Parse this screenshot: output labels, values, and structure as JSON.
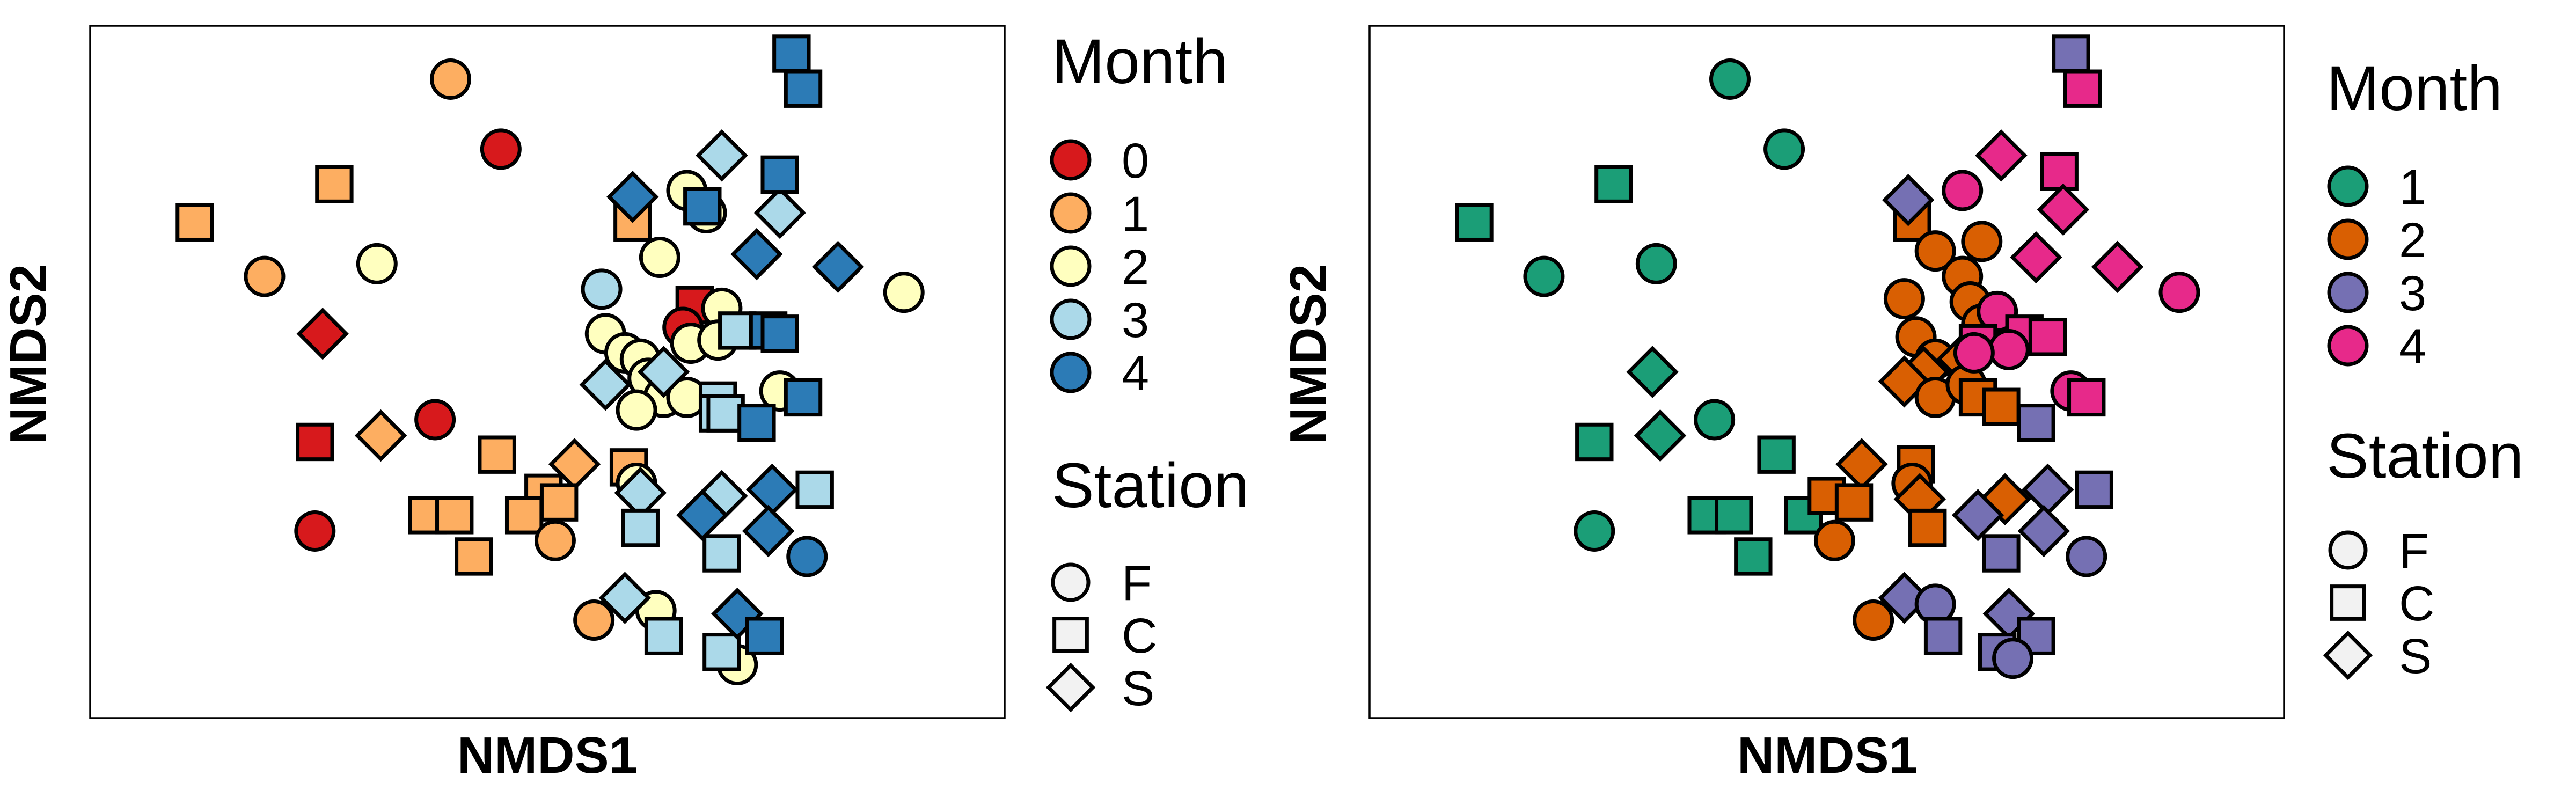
{
  "chart_data": [
    {
      "type": "scatter",
      "xlabel": "NMDS1",
      "ylabel": "NMDS2",
      "xlim": [
        0,
        100
      ],
      "ylim": [
        0,
        100
      ],
      "grid": false,
      "legend_placement": "right",
      "color_legend": {
        "title": "Month",
        "entries": [
          {
            "label": "0",
            "color": "#D7191C"
          },
          {
            "label": "1",
            "color": "#FDAE61"
          },
          {
            "label": "2",
            "color": "#FFFFBF"
          },
          {
            "label": "3",
            "color": "#ABD9E9"
          },
          {
            "label": "4",
            "color": "#2C7BB6"
          }
        ]
      },
      "shape_legend": {
        "title": "Station",
        "entries": [
          {
            "label": "F",
            "shape": "circle"
          },
          {
            "label": "C",
            "shape": "square"
          },
          {
            "label": "S",
            "shape": "diamond"
          }
        ]
      },
      "points": [
        {
          "x": 44.0,
          "y": 85.0,
          "g": 0,
          "s": "F"
        },
        {
          "x": 21.0,
          "y": 56.0,
          "g": 0,
          "s": "S"
        },
        {
          "x": 35.5,
          "y": 42.5,
          "g": 0,
          "s": "F"
        },
        {
          "x": 20.0,
          "y": 39.0,
          "g": 0,
          "s": "C"
        },
        {
          "x": 20.0,
          "y": 25.0,
          "g": 0,
          "s": "F"
        },
        {
          "x": 69.0,
          "y": 60.5,
          "g": 0,
          "s": "C"
        },
        {
          "x": 67.5,
          "y": 57.0,
          "g": 0,
          "s": "F"
        },
        {
          "x": 37.5,
          "y": 96.0,
          "g": 1,
          "s": "F"
        },
        {
          "x": 22.5,
          "y": 79.5,
          "g": 1,
          "s": "C"
        },
        {
          "x": 4.5,
          "y": 73.5,
          "g": 1,
          "s": "C"
        },
        {
          "x": 13.5,
          "y": 65.0,
          "g": 1,
          "s": "F"
        },
        {
          "x": 28.5,
          "y": 40.0,
          "g": 1,
          "s": "S"
        },
        {
          "x": 43.5,
          "y": 37.0,
          "g": 1,
          "s": "C"
        },
        {
          "x": 53.5,
          "y": 35.5,
          "g": 1,
          "s": "S"
        },
        {
          "x": 49.5,
          "y": 31.0,
          "g": 1,
          "s": "C"
        },
        {
          "x": 51.5,
          "y": 29.5,
          "g": 1,
          "s": "C"
        },
        {
          "x": 34.5,
          "y": 27.5,
          "g": 1,
          "s": "C"
        },
        {
          "x": 38.0,
          "y": 27.5,
          "g": 1,
          "s": "C"
        },
        {
          "x": 47.0,
          "y": 27.5,
          "g": 1,
          "s": "C"
        },
        {
          "x": 51.0,
          "y": 23.5,
          "g": 1,
          "s": "F"
        },
        {
          "x": 40.5,
          "y": 21.0,
          "g": 1,
          "s": "C"
        },
        {
          "x": 60.5,
          "y": 35.0,
          "g": 1,
          "s": "C"
        },
        {
          "x": 61.0,
          "y": 73.5,
          "g": 1,
          "s": "C"
        },
        {
          "x": 56.0,
          "y": 11.0,
          "g": 1,
          "s": "F"
        },
        {
          "x": 28.0,
          "y": 67.0,
          "g": 2,
          "s": "F"
        },
        {
          "x": 68.0,
          "y": 78.5,
          "g": 2,
          "s": "F"
        },
        {
          "x": 70.5,
          "y": 75.0,
          "g": 2,
          "s": "F"
        },
        {
          "x": 64.5,
          "y": 68.0,
          "g": 2,
          "s": "F"
        },
        {
          "x": 57.5,
          "y": 56.0,
          "g": 2,
          "s": "F"
        },
        {
          "x": 60.0,
          "y": 53.0,
          "g": 2,
          "s": "F"
        },
        {
          "x": 62.0,
          "y": 52.0,
          "g": 2,
          "s": "F"
        },
        {
          "x": 68.5,
          "y": 54.5,
          "g": 2,
          "s": "F"
        },
        {
          "x": 72.5,
          "y": 60.0,
          "g": 2,
          "s": "F"
        },
        {
          "x": 72.0,
          "y": 55.0,
          "g": 2,
          "s": "F"
        },
        {
          "x": 63.0,
          "y": 49.0,
          "g": 2,
          "s": "F"
        },
        {
          "x": 65.0,
          "y": 46.0,
          "g": 2,
          "s": "F"
        },
        {
          "x": 68.0,
          "y": 46.0,
          "g": 2,
          "s": "F"
        },
        {
          "x": 61.5,
          "y": 44.0,
          "g": 2,
          "s": "F"
        },
        {
          "x": 80.0,
          "y": 47.0,
          "g": 2,
          "s": "F"
        },
        {
          "x": 96.0,
          "y": 62.5,
          "g": 2,
          "s": "F"
        },
        {
          "x": 61.5,
          "y": 32.5,
          "g": 2,
          "s": "F"
        },
        {
          "x": 64.0,
          "y": 12.5,
          "g": 2,
          "s": "F"
        },
        {
          "x": 74.5,
          "y": 4.0,
          "g": 2,
          "s": "F"
        },
        {
          "x": 57.0,
          "y": 63.0,
          "g": 3,
          "s": "F"
        },
        {
          "x": 57.5,
          "y": 48.0,
          "g": 3,
          "s": "S"
        },
        {
          "x": 65.0,
          "y": 50.0,
          "g": 3,
          "s": "S"
        },
        {
          "x": 72.5,
          "y": 84.0,
          "g": 3,
          "s": "S"
        },
        {
          "x": 80.0,
          "y": 75.0,
          "g": 3,
          "s": "S"
        },
        {
          "x": 74.5,
          "y": 56.5,
          "g": 3,
          "s": "C"
        },
        {
          "x": 72.0,
          "y": 45.5,
          "g": 3,
          "s": "C"
        },
        {
          "x": 72.0,
          "y": 43.5,
          "g": 3,
          "s": "C"
        },
        {
          "x": 73.0,
          "y": 43.5,
          "g": 3,
          "s": "C"
        },
        {
          "x": 62.0,
          "y": 31.0,
          "g": 3,
          "s": "S"
        },
        {
          "x": 62.0,
          "y": 25.5,
          "g": 3,
          "s": "C"
        },
        {
          "x": 72.5,
          "y": 30.5,
          "g": 3,
          "s": "S"
        },
        {
          "x": 84.5,
          "y": 31.5,
          "g": 3,
          "s": "C"
        },
        {
          "x": 72.5,
          "y": 21.5,
          "g": 3,
          "s": "C"
        },
        {
          "x": 60.0,
          "y": 14.5,
          "g": 3,
          "s": "S"
        },
        {
          "x": 65.0,
          "y": 8.5,
          "g": 3,
          "s": "C"
        },
        {
          "x": 72.5,
          "y": 6.0,
          "g": 3,
          "s": "C"
        },
        {
          "x": 81.5,
          "y": 100.0,
          "g": 4,
          "s": "C"
        },
        {
          "x": 83.0,
          "y": 94.5,
          "g": 4,
          "s": "C"
        },
        {
          "x": 80.0,
          "y": 81.0,
          "g": 4,
          "s": "C"
        },
        {
          "x": 61.0,
          "y": 77.5,
          "g": 4,
          "s": "S"
        },
        {
          "x": 70.0,
          "y": 76.0,
          "g": 4,
          "s": "C"
        },
        {
          "x": 77.0,
          "y": 68.5,
          "g": 4,
          "s": "S"
        },
        {
          "x": 87.5,
          "y": 66.5,
          "g": 4,
          "s": "S"
        },
        {
          "x": 78.5,
          "y": 56.5,
          "g": 4,
          "s": "C"
        },
        {
          "x": 80.0,
          "y": 56.0,
          "g": 4,
          "s": "C"
        },
        {
          "x": 83.0,
          "y": 46.0,
          "g": 4,
          "s": "C"
        },
        {
          "x": 77.0,
          "y": 42.0,
          "g": 4,
          "s": "C"
        },
        {
          "x": 79.0,
          "y": 31.5,
          "g": 4,
          "s": "S"
        },
        {
          "x": 70.0,
          "y": 27.5,
          "g": 4,
          "s": "S"
        },
        {
          "x": 78.5,
          "y": 25.0,
          "g": 4,
          "s": "S"
        },
        {
          "x": 83.5,
          "y": 21.0,
          "g": 4,
          "s": "F"
        },
        {
          "x": 74.5,
          "y": 12.0,
          "g": 4,
          "s": "S"
        },
        {
          "x": 78.0,
          "y": 8.5,
          "g": 4,
          "s": "C"
        }
      ]
    },
    {
      "type": "scatter",
      "xlabel": "NMDS1",
      "ylabel": "NMDS2",
      "xlim": [
        0,
        100
      ],
      "ylim": [
        0,
        100
      ],
      "grid": false,
      "legend_placement": "right",
      "color_legend": {
        "title": "Month",
        "entries": [
          {
            "label": "1",
            "color": "#1B9E77"
          },
          {
            "label": "2",
            "color": "#D95F02"
          },
          {
            "label": "3",
            "color": "#7570B3"
          },
          {
            "label": "4",
            "color": "#E7298A"
          }
        ]
      },
      "shape_legend": {
        "title": "Station",
        "entries": [
          {
            "label": "F",
            "shape": "circle"
          },
          {
            "label": "C",
            "shape": "square"
          },
          {
            "label": "S",
            "shape": "diamond"
          }
        ]
      },
      "points": [
        {
          "x": 37.5,
          "y": 96.0,
          "g": 1,
          "s": "F"
        },
        {
          "x": 44.5,
          "y": 85.0,
          "g": 1,
          "s": "F"
        },
        {
          "x": 22.5,
          "y": 79.5,
          "g": 1,
          "s": "C"
        },
        {
          "x": 4.5,
          "y": 73.5,
          "g": 1,
          "s": "C"
        },
        {
          "x": 13.5,
          "y": 65.0,
          "g": 1,
          "s": "F"
        },
        {
          "x": 28.0,
          "y": 67.0,
          "g": 1,
          "s": "F"
        },
        {
          "x": 27.5,
          "y": 50.0,
          "g": 1,
          "s": "S"
        },
        {
          "x": 28.5,
          "y": 40.0,
          "g": 1,
          "s": "S"
        },
        {
          "x": 35.5,
          "y": 42.5,
          "g": 1,
          "s": "F"
        },
        {
          "x": 20.0,
          "y": 39.0,
          "g": 1,
          "s": "C"
        },
        {
          "x": 43.5,
          "y": 37.0,
          "g": 1,
          "s": "C"
        },
        {
          "x": 34.5,
          "y": 27.5,
          "g": 1,
          "s": "C"
        },
        {
          "x": 38.0,
          "y": 27.5,
          "g": 1,
          "s": "C"
        },
        {
          "x": 47.0,
          "y": 27.5,
          "g": 1,
          "s": "C"
        },
        {
          "x": 20.0,
          "y": 25.0,
          "g": 1,
          "s": "F"
        },
        {
          "x": 40.5,
          "y": 21.0,
          "g": 1,
          "s": "C"
        },
        {
          "x": 61.0,
          "y": 73.5,
          "g": 2,
          "s": "C"
        },
        {
          "x": 64.0,
          "y": 69.0,
          "g": 2,
          "s": "F"
        },
        {
          "x": 70.0,
          "y": 70.5,
          "g": 2,
          "s": "F"
        },
        {
          "x": 67.5,
          "y": 65.0,
          "g": 2,
          "s": "F"
        },
        {
          "x": 60.0,
          "y": 61.5,
          "g": 2,
          "s": "F"
        },
        {
          "x": 68.5,
          "y": 61.0,
          "g": 2,
          "s": "F"
        },
        {
          "x": 70.0,
          "y": 57.5,
          "g": 2,
          "s": "F"
        },
        {
          "x": 61.5,
          "y": 55.5,
          "g": 2,
          "s": "F"
        },
        {
          "x": 64.0,
          "y": 52.0,
          "g": 2,
          "s": "F"
        },
        {
          "x": 62.5,
          "y": 50.0,
          "g": 2,
          "s": "S"
        },
        {
          "x": 60.0,
          "y": 48.5,
          "g": 2,
          "s": "S"
        },
        {
          "x": 67.5,
          "y": 52.0,
          "g": 2,
          "s": "S"
        },
        {
          "x": 64.0,
          "y": 46.0,
          "g": 2,
          "s": "F"
        },
        {
          "x": 68.0,
          "y": 48.0,
          "g": 2,
          "s": "F"
        },
        {
          "x": 69.5,
          "y": 46.0,
          "g": 2,
          "s": "C"
        },
        {
          "x": 72.5,
          "y": 44.5,
          "g": 2,
          "s": "C"
        },
        {
          "x": 61.5,
          "y": 35.5,
          "g": 2,
          "s": "C"
        },
        {
          "x": 54.5,
          "y": 35.5,
          "g": 2,
          "s": "S"
        },
        {
          "x": 61.0,
          "y": 32.5,
          "g": 2,
          "s": "F"
        },
        {
          "x": 62.0,
          "y": 30.0,
          "g": 2,
          "s": "S"
        },
        {
          "x": 50.0,
          "y": 30.5,
          "g": 2,
          "s": "C"
        },
        {
          "x": 53.5,
          "y": 29.5,
          "g": 2,
          "s": "C"
        },
        {
          "x": 63.0,
          "y": 25.5,
          "g": 2,
          "s": "C"
        },
        {
          "x": 73.0,
          "y": 30.0,
          "g": 2,
          "s": "S"
        },
        {
          "x": 51.0,
          "y": 23.5,
          "g": 2,
          "s": "F"
        },
        {
          "x": 56.0,
          "y": 11.0,
          "g": 2,
          "s": "F"
        },
        {
          "x": 81.5,
          "y": 100.0,
          "g": 3,
          "s": "C"
        },
        {
          "x": 60.5,
          "y": 77.0,
          "g": 3,
          "s": "S"
        },
        {
          "x": 77.0,
          "y": 42.0,
          "g": 3,
          "s": "C"
        },
        {
          "x": 78.5,
          "y": 31.5,
          "g": 3,
          "s": "S"
        },
        {
          "x": 84.5,
          "y": 31.5,
          "g": 3,
          "s": "C"
        },
        {
          "x": 69.5,
          "y": 27.5,
          "g": 3,
          "s": "S"
        },
        {
          "x": 78.0,
          "y": 25.0,
          "g": 3,
          "s": "S"
        },
        {
          "x": 72.5,
          "y": 21.5,
          "g": 3,
          "s": "C"
        },
        {
          "x": 83.5,
          "y": 21.0,
          "g": 3,
          "s": "F"
        },
        {
          "x": 60.0,
          "y": 14.5,
          "g": 3,
          "s": "S"
        },
        {
          "x": 64.0,
          "y": 13.5,
          "g": 3,
          "s": "F"
        },
        {
          "x": 73.5,
          "y": 12.0,
          "g": 3,
          "s": "S"
        },
        {
          "x": 65.0,
          "y": 8.5,
          "g": 3,
          "s": "C"
        },
        {
          "x": 77.0,
          "y": 8.5,
          "g": 3,
          "s": "C"
        },
        {
          "x": 72.0,
          "y": 6.0,
          "g": 3,
          "s": "C"
        },
        {
          "x": 74.0,
          "y": 5.0,
          "g": 3,
          "s": "F"
        },
        {
          "x": 83.0,
          "y": 94.5,
          "g": 4,
          "s": "C"
        },
        {
          "x": 72.5,
          "y": 84.0,
          "g": 4,
          "s": "S"
        },
        {
          "x": 80.0,
          "y": 81.5,
          "g": 4,
          "s": "C"
        },
        {
          "x": 67.5,
          "y": 78.5,
          "g": 4,
          "s": "F"
        },
        {
          "x": 80.5,
          "y": 75.5,
          "g": 4,
          "s": "S"
        },
        {
          "x": 77.0,
          "y": 68.0,
          "g": 4,
          "s": "S"
        },
        {
          "x": 87.5,
          "y": 66.5,
          "g": 4,
          "s": "S"
        },
        {
          "x": 95.5,
          "y": 62.5,
          "g": 4,
          "s": "F"
        },
        {
          "x": 72.0,
          "y": 59.5,
          "g": 4,
          "s": "F"
        },
        {
          "x": 69.5,
          "y": 54.5,
          "g": 4,
          "s": "C"
        },
        {
          "x": 75.5,
          "y": 56.0,
          "g": 4,
          "s": "C"
        },
        {
          "x": 78.5,
          "y": 55.5,
          "g": 4,
          "s": "C"
        },
        {
          "x": 73.5,
          "y": 53.5,
          "g": 4,
          "s": "F"
        },
        {
          "x": 69.0,
          "y": 53.0,
          "g": 4,
          "s": "F"
        },
        {
          "x": 81.5,
          "y": 47.0,
          "g": 4,
          "s": "F"
        },
        {
          "x": 83.5,
          "y": 46.0,
          "g": 4,
          "s": "C"
        }
      ]
    }
  ]
}
